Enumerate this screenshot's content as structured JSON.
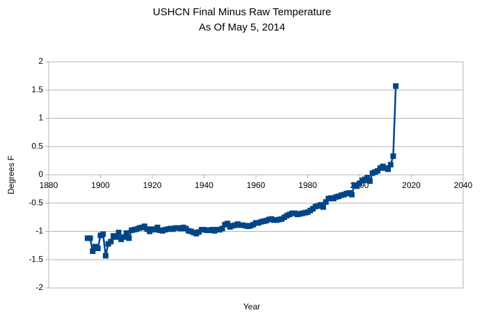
{
  "chart_data": {
    "type": "line",
    "title": "USHCN Final Minus Raw Temperature",
    "subtitle": "As Of May 5, 2014",
    "x_label": "Year",
    "y_label": "Degrees F",
    "color": "#004586",
    "grid": true,
    "xlim": [
      1880,
      2040
    ],
    "xticks": [
      1880,
      1900,
      1920,
      1940,
      1960,
      1980,
      2000,
      2020,
      2040
    ],
    "ylim": [
      -2,
      2
    ],
    "yticks": [
      2,
      1.5,
      1,
      0.5,
      0,
      -0.5,
      -1,
      -1.5,
      -2
    ],
    "x": [
      1895,
      1896,
      1897,
      1898,
      1899,
      1900,
      1901,
      1902,
      1903,
      1904,
      1905,
      1906,
      1907,
      1908,
      1909,
      1910,
      1911,
      1912,
      1913,
      1914,
      1915,
      1916,
      1917,
      1918,
      1919,
      1920,
      1921,
      1922,
      1923,
      1924,
      1925,
      1926,
      1927,
      1928,
      1929,
      1930,
      1931,
      1932,
      1933,
      1934,
      1935,
      1936,
      1937,
      1938,
      1939,
      1940,
      1941,
      1942,
      1943,
      1944,
      1945,
      1946,
      1947,
      1948,
      1949,
      1950,
      1951,
      1952,
      1953,
      1954,
      1955,
      1956,
      1957,
      1958,
      1959,
      1960,
      1961,
      1962,
      1963,
      1964,
      1965,
      1966,
      1967,
      1968,
      1969,
      1970,
      1971,
      1972,
      1973,
      1974,
      1975,
      1976,
      1977,
      1978,
      1979,
      1980,
      1981,
      1982,
      1983,
      1984,
      1985,
      1986,
      1987,
      1988,
      1989,
      1990,
      1991,
      1992,
      1993,
      1994,
      1995,
      1996,
      1997,
      1998,
      1999,
      2000,
      2001,
      2002,
      2003,
      2004,
      2005,
      2006,
      2007,
      2008,
      2009,
      2010,
      2011,
      2012,
      2013,
      2014
    ],
    "values": [
      -1.12,
      -1.12,
      -1.35,
      -1.27,
      -1.3,
      -1.07,
      -1.05,
      -1.43,
      -1.22,
      -1.18,
      -1.08,
      -1.1,
      -1.02,
      -1.14,
      -1.1,
      -1.03,
      -1.12,
      -0.98,
      -0.97,
      -0.96,
      -0.94,
      -0.93,
      -0.91,
      -0.96,
      -1.0,
      -0.96,
      -0.97,
      -0.93,
      -0.98,
      -0.99,
      -0.97,
      -0.96,
      -0.95,
      -0.96,
      -0.94,
      -0.94,
      -0.95,
      -0.93,
      -0.95,
      -0.99,
      -1.0,
      -1.02,
      -1.04,
      -1.01,
      -0.97,
      -0.97,
      -0.98,
      -0.98,
      -0.97,
      -0.99,
      -0.97,
      -0.97,
      -0.95,
      -0.88,
      -0.86,
      -0.92,
      -0.9,
      -0.89,
      -0.87,
      -0.89,
      -0.89,
      -0.9,
      -0.91,
      -0.9,
      -0.88,
      -0.85,
      -0.85,
      -0.83,
      -0.82,
      -0.81,
      -0.79,
      -0.78,
      -0.8,
      -0.8,
      -0.79,
      -0.78,
      -0.75,
      -0.72,
      -0.7,
      -0.68,
      -0.68,
      -0.7,
      -0.69,
      -0.68,
      -0.67,
      -0.66,
      -0.63,
      -0.6,
      -0.56,
      -0.55,
      -0.53,
      -0.57,
      -0.48,
      -0.42,
      -0.41,
      -0.42,
      -0.39,
      -0.38,
      -0.36,
      -0.35,
      -0.33,
      -0.32,
      -0.35,
      -0.18,
      -0.2,
      -0.15,
      -0.1,
      -0.08,
      -0.05,
      -0.11,
      0.03,
      0.05,
      0.07,
      0.12,
      0.15,
      0.12,
      0.1,
      0.18,
      0.33,
      1.57
    ]
  }
}
